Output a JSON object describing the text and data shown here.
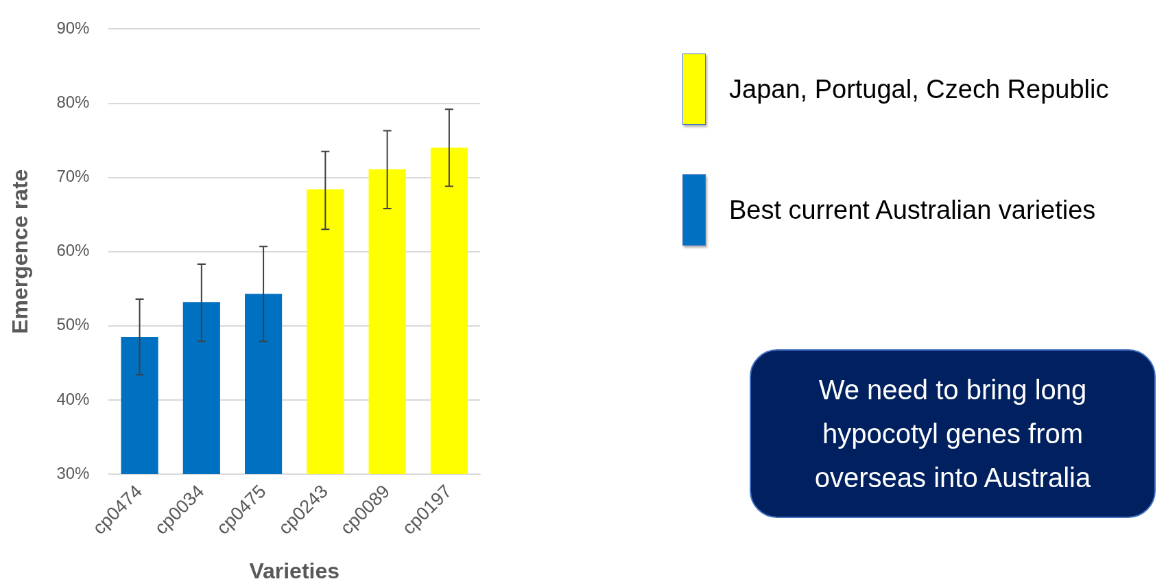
{
  "chart_data": {
    "type": "bar",
    "xlabel": "Varieties",
    "ylabel": "Emergence rate",
    "categories": [
      "cp0474",
      "cp0034",
      "cp0475",
      "cp0243",
      "cp0089",
      "cp0197"
    ],
    "series": [
      {
        "name": "Japan, Portugal, Czech Republic",
        "color": "#ffff00",
        "values": [
          null,
          null,
          null,
          68.4,
          71.1,
          74.0
        ],
        "errors": [
          null,
          null,
          null,
          [
            63.0,
            73.5
          ],
          [
            65.8,
            76.3
          ],
          [
            68.8,
            79.2
          ]
        ]
      },
      {
        "name": "Best current Australian varieties",
        "color": "#0070c0",
        "values": [
          48.5,
          53.2,
          54.3,
          null,
          null,
          null
        ],
        "errors": [
          [
            43.4,
            53.6
          ],
          [
            47.9,
            58.3
          ],
          [
            47.9,
            60.7
          ],
          null,
          null,
          null
        ]
      }
    ],
    "ylim": [
      30,
      90
    ],
    "yticks": [
      {
        "value": 30,
        "label": "30%"
      },
      {
        "value": 40,
        "label": "40%"
      },
      {
        "value": 50,
        "label": "50%"
      },
      {
        "value": 60,
        "label": "60%"
      },
      {
        "value": 70,
        "label": "70%"
      },
      {
        "value": 80,
        "label": "80%"
      },
      {
        "value": 90,
        "label": "90%"
      }
    ],
    "grid": "y",
    "legend": "right",
    "annotations": [
      "We need to bring long hypocotyl genes from overseas into Australia"
    ]
  }
}
